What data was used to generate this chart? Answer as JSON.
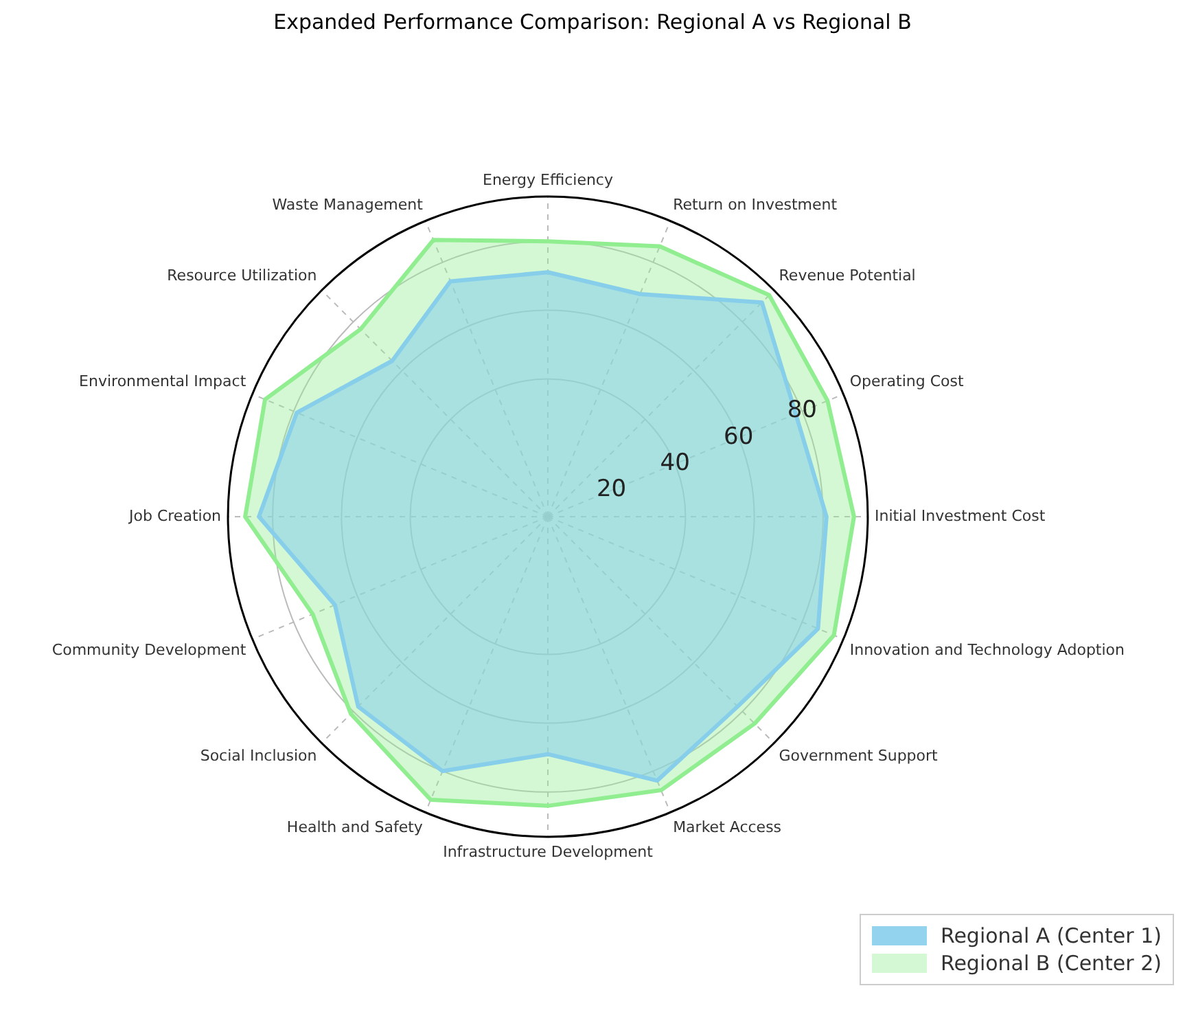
{
  "chart_data": {
    "type": "radar",
    "title": "Expanded Performance Comparison: Regional A vs Regional B",
    "categories": [
      "Energy Efficiency",
      "Return on Investment",
      "Revenue Potential",
      "Operating Cost",
      "Initial Investment Cost",
      "Innovation and Technology Adoption",
      "Government Support",
      "Market Access",
      "Infrastructure Development",
      "Health and Safety",
      "Social Inclusion",
      "Community Development",
      "Job Creation",
      "Environmental Impact",
      "Resource Utilization",
      "Waste Management"
    ],
    "series": [
      {
        "name": "Regional A (Center 1)",
        "color": "#87ceeb",
        "values": [
          71,
          70,
          88,
          78,
          81,
          85,
          78,
          83,
          69,
          80,
          78,
          67,
          84,
          79,
          64,
          74
        ]
      },
      {
        "name": "Regional B (Center 2)",
        "color": "#90ee90",
        "values": [
          80,
          85,
          91,
          88,
          89,
          90,
          85,
          86,
          84,
          89,
          81,
          74,
          88,
          89,
          77,
          87
        ]
      }
    ],
    "ylim": [
      0,
      93
    ],
    "yticks": [
      20,
      40,
      60,
      80
    ],
    "grid": true,
    "legend": "bottom right"
  }
}
